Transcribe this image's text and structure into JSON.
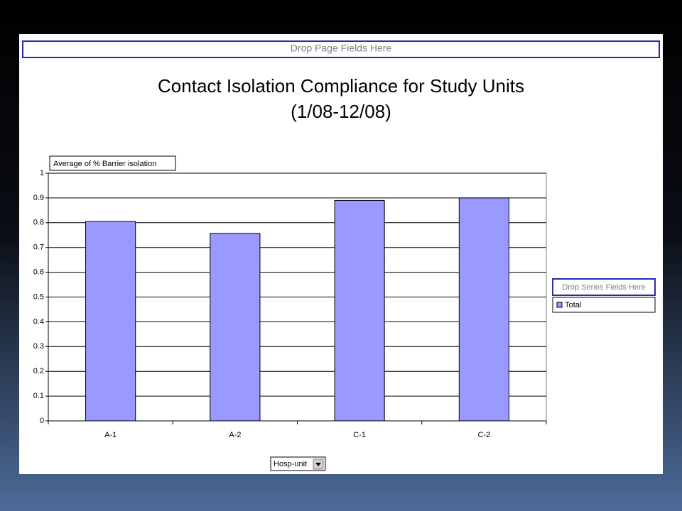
{
  "chart_data": {
    "type": "bar",
    "title": "Contact Isolation Compliance for Study Units",
    "subtitle": "(1/08-12/08)",
    "page_field_hint": "Drop Page Fields Here",
    "series_field_hint": "Drop Series Fields Here",
    "data_field": "Average of % Barrier isolation",
    "category_field": "Hosp-unit",
    "categories": [
      "A-1",
      "A-2",
      "C-1",
      "C-2"
    ],
    "series": [
      {
        "name": "Total",
        "color": "#9999ff",
        "values": [
          0.805,
          0.757,
          0.89,
          0.9
        ]
      }
    ],
    "ylim": [
      0,
      1
    ],
    "yticks": [
      0,
      0.1,
      0.2,
      0.3,
      0.4,
      0.5,
      0.6,
      0.7,
      0.8,
      0.9,
      1
    ],
    "grid": true
  }
}
